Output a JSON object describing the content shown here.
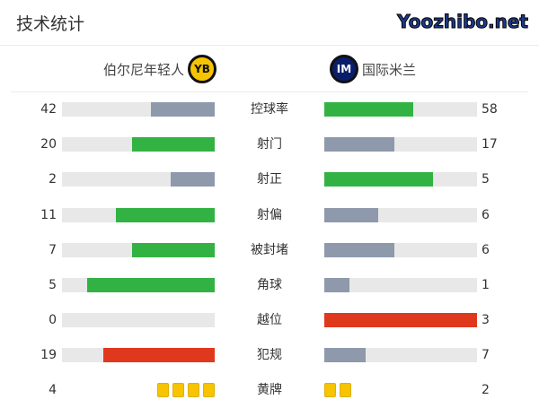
{
  "title": "技术统计",
  "home": {
    "name": "伯尔尼年轻人",
    "logo_text": "YB"
  },
  "away": {
    "name": "国际米兰",
    "logo_text": "IM"
  },
  "colors": {
    "win": "#33b244",
    "lose": "#8e99ab",
    "bad": "#e0381c",
    "track": "#e8e8e8",
    "card": "#f6c400"
  },
  "stats": [
    {
      "label": "控球率",
      "home": "42",
      "away": "58",
      "hc": "lose",
      "ac": "win"
    },
    {
      "label": "射门",
      "home": "20",
      "away": "17",
      "hc": "win",
      "ac": "lose"
    },
    {
      "label": "射正",
      "home": "2",
      "away": "5",
      "hc": "lose",
      "ac": "win"
    },
    {
      "label": "射偏",
      "home": "11",
      "away": "6",
      "hc": "win",
      "ac": "lose"
    },
    {
      "label": "被封堵",
      "home": "7",
      "away": "6",
      "hc": "win",
      "ac": "lose"
    },
    {
      "label": "角球",
      "home": "5",
      "away": "1",
      "hc": "win",
      "ac": "lose"
    },
    {
      "label": "越位",
      "home": "0",
      "away": "3",
      "hc": "lose",
      "ac": "bad"
    },
    {
      "label": "犯规",
      "home": "19",
      "away": "7",
      "hc": "bad",
      "ac": "lose"
    }
  ],
  "yellow": {
    "label": "黄牌",
    "home": "4",
    "away": "2"
  },
  "watermark": "Yoozhibo.net"
}
